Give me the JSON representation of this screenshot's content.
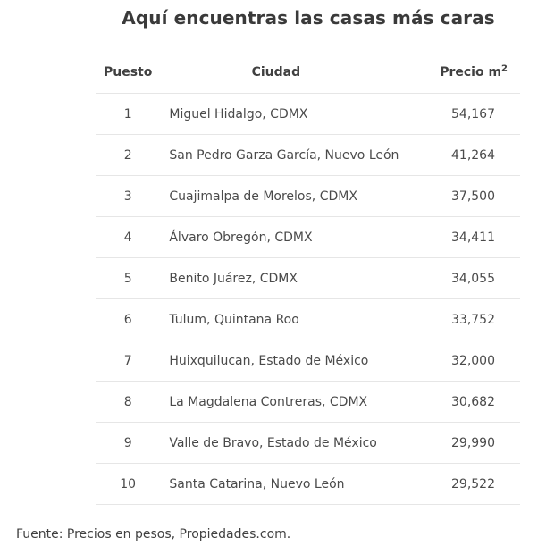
{
  "title": "Aquí encuentras las casas más caras",
  "table": {
    "headers": {
      "rank": "Puesto",
      "city": "Ciudad",
      "price": "Precio m",
      "price_sup": "2"
    },
    "rows": [
      {
        "rank": "1",
        "city": "Miguel Hidalgo, CDMX",
        "price": "54,167"
      },
      {
        "rank": "2",
        "city": "San Pedro Garza García, Nuevo León",
        "price": "41,264"
      },
      {
        "rank": "3",
        "city": "Cuajimalpa de Morelos, CDMX",
        "price": "37,500"
      },
      {
        "rank": "4",
        "city": "Álvaro Obregón, CDMX",
        "price": "34,411"
      },
      {
        "rank": "5",
        "city": "Benito Juárez, CDMX",
        "price": "34,055"
      },
      {
        "rank": "6",
        "city": "Tulum, Quintana Roo",
        "price": "33,752"
      },
      {
        "rank": "7",
        "city": "Huixquilucan, Estado de México",
        "price": "32,000"
      },
      {
        "rank": "8",
        "city": "La Magdalena Contreras, CDMX",
        "price": "30,682"
      },
      {
        "rank": "9",
        "city": "Valle de Bravo, Estado de México",
        "price": "29,990"
      },
      {
        "rank": "10",
        "city": "Santa Catarina, Nuevo León",
        "price": "29,522"
      }
    ]
  },
  "footnote": "Fuente: Precios en pesos, Propiedades.com."
}
